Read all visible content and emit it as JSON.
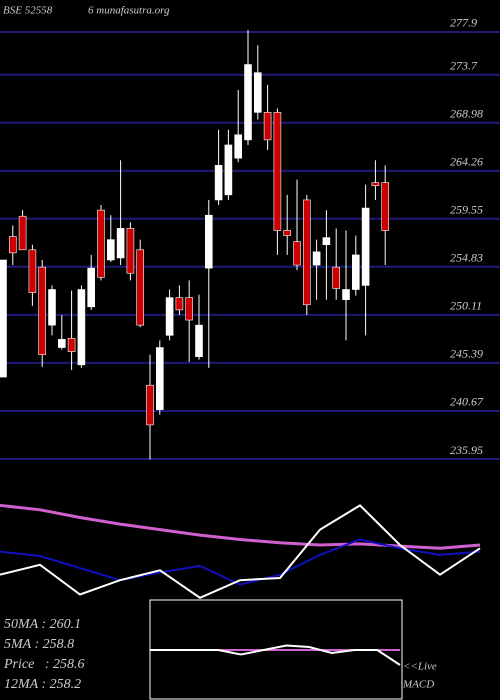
{
  "chart_data": [
    {
      "type": "candlestick",
      "title": "BSE 52558",
      "subtitle": "6 munafasutra.org",
      "up_color": "#ffffff",
      "down_color": "#cc0000",
      "grid_color": "#1c1c78",
      "ylim": [
        234.87,
        281.04
      ],
      "yticks": [
        277.9,
        273.7,
        268.98,
        264.26,
        259.55,
        254.83,
        250.11,
        245.39,
        240.67,
        235.95
      ],
      "open": [
        244.0,
        257.8,
        259.8,
        256.5,
        254.8,
        249.1,
        246.9,
        247.8,
        245.2,
        250.9,
        260.4,
        255.5,
        255.7,
        258.6,
        256.5,
        243.2,
        240.8,
        248.1,
        251.8,
        251.8,
        246.0,
        254.7,
        261.4,
        261.9,
        265.5,
        267.3,
        270.0,
        270.0,
        270.0,
        258.4,
        257.3,
        261.4,
        255.0,
        257.0,
        254.8,
        251.6,
        252.6,
        253.0,
        263.1,
        263.1
      ],
      "high": [
        255.5,
        258.9,
        260.4,
        257.0,
        255.5,
        253.0,
        250.1,
        252.5,
        253.0,
        256.0,
        260.9,
        259.9,
        265.3,
        259.2,
        257.5,
        246.2,
        247.6,
        252.6,
        253.0,
        253.5,
        252.1,
        261.4,
        268.3,
        268.3,
        272.2,
        278.1,
        276.6,
        272.7,
        270.4,
        261.9,
        263.4,
        261.9,
        257.5,
        260.4,
        258.6,
        258.4,
        257.9,
        262.9,
        265.3,
        264.8
      ],
      "low": [
        244.0,
        255.0,
        256.5,
        251.0,
        245.0,
        248.1,
        246.7,
        244.7,
        244.9,
        250.6,
        253.5,
        255.3,
        255.0,
        253.5,
        248.9,
        235.9,
        240.3,
        247.6,
        250.1,
        245.5,
        245.7,
        244.9,
        260.9,
        261.4,
        265.1,
        266.8,
        269.3,
        266.3,
        256.0,
        256.0,
        254.5,
        250.1,
        251.6,
        251.6,
        251.6,
        247.6,
        252.0,
        248.1,
        261.4,
        255.0
      ],
      "close": [
        255.5,
        256.2,
        256.5,
        252.3,
        246.2,
        252.6,
        247.7,
        246.5,
        252.6,
        254.7,
        253.8,
        257.5,
        258.6,
        254.2,
        249.1,
        239.3,
        246.9,
        251.8,
        250.6,
        249.6,
        249.1,
        259.9,
        264.8,
        266.8,
        267.8,
        274.7,
        273.9,
        267.3,
        258.4,
        257.9,
        255.0,
        251.1,
        256.3,
        257.7,
        252.7,
        252.6,
        256.0,
        260.6,
        262.8,
        258.4
      ]
    },
    {
      "type": "line",
      "ylim": [
        0,
        100
      ],
      "series": [
        {
          "color": "#d060d0",
          "values": [
            86,
            82,
            75,
            69,
            64,
            59,
            55,
            52,
            50,
            51,
            49,
            47,
            50
          ]
        },
        {
          "color": "#1010c0",
          "values": [
            44,
            40,
            29,
            18,
            25,
            31,
            14,
            23,
            41,
            55,
            47,
            41,
            44
          ]
        },
        {
          "color": "#ffffff",
          "values": [
            23,
            32,
            5,
            18,
            27,
            2,
            18,
            20,
            64,
            86,
            50,
            23,
            47
          ]
        }
      ]
    },
    {
      "type": "macd",
      "ylim": [
        -1,
        1
      ],
      "label": "MACD",
      "live": "<<Live",
      "stats": [
        "50MA : 260.1",
        "5MA : 258.8",
        "Price   : 258.6",
        "12MA : 258.2"
      ],
      "series": [
        {
          "color": "#d060d0",
          "values": [
            0,
            0,
            0,
            0,
            0,
            0,
            0,
            0,
            0,
            0,
            0,
            0
          ]
        },
        {
          "color": "#ffffff",
          "values": [
            0,
            0,
            0,
            0,
            -0.15,
            0,
            0.15,
            0.1,
            -0.1,
            0,
            0,
            -0.5
          ]
        }
      ]
    }
  ]
}
